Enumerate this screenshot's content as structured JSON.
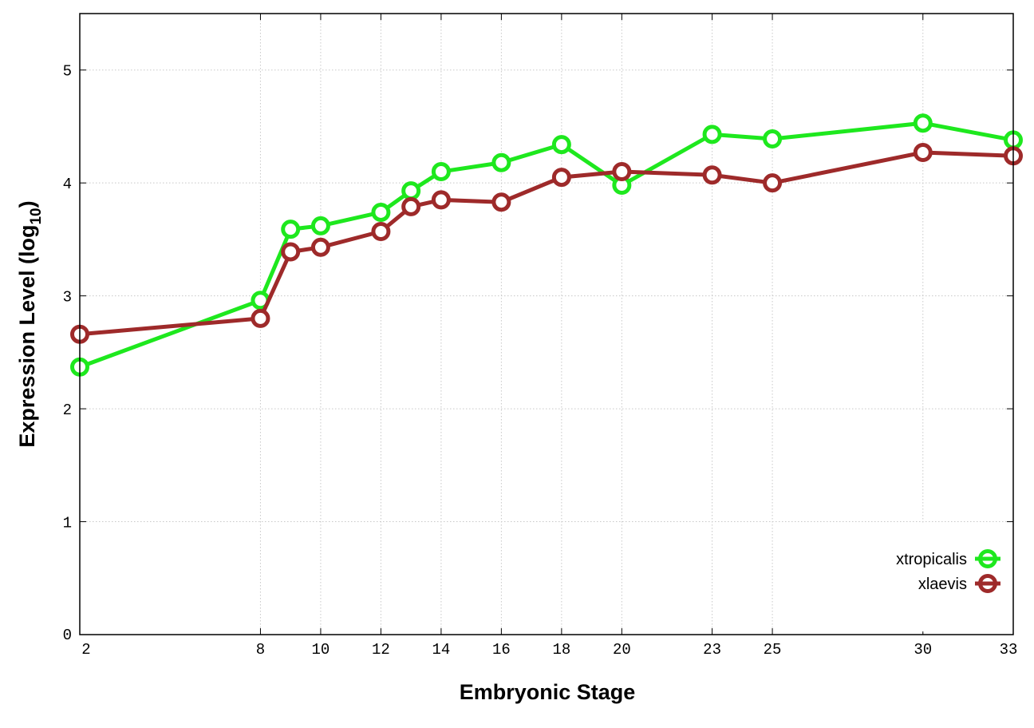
{
  "chart_data": {
    "type": "line",
    "title": "",
    "xlabel": "Embryonic Stage",
    "ylabel_main": "Expression Level (log",
    "ylabel_sub": "10",
    "ylabel_close": ")",
    "xlim": [
      2,
      33
    ],
    "ylim": [
      0,
      5.5
    ],
    "xticks": [
      2,
      8,
      10,
      12,
      14,
      16,
      18,
      20,
      23,
      25,
      30,
      33
    ],
    "yticks": [
      0,
      1,
      2,
      3,
      4,
      5
    ],
    "grid": true,
    "legend_position": "bottom-right",
    "x": [
      2,
      8,
      9,
      10,
      12,
      13,
      14,
      16,
      18,
      20,
      23,
      25,
      30,
      33
    ],
    "series": [
      {
        "name": "xtropicalis",
        "color": "#1ee81e",
        "values": [
          2.37,
          2.96,
          3.59,
          3.62,
          3.74,
          3.93,
          4.1,
          4.18,
          4.34,
          3.98,
          4.43,
          4.39,
          4.53,
          4.38
        ]
      },
      {
        "name": "xlaevis",
        "color": "#9e2a2a",
        "values": [
          2.66,
          2.8,
          3.39,
          3.43,
          3.57,
          3.79,
          3.85,
          3.83,
          4.05,
          4.1,
          4.07,
          4.0,
          4.27,
          4.24
        ]
      }
    ]
  }
}
